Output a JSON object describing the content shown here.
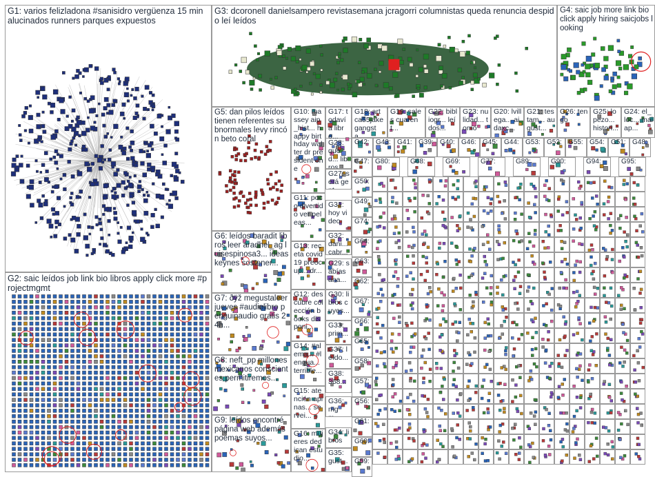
{
  "groups": [
    {
      "id": "G1",
      "text": "G1: varios felizladona #sanisidro vergüenza 15 min alucinados runners parques expuestos"
    },
    {
      "id": "G2",
      "text": "G2: saic leídos job link bio libros apply click more #projectmgmt"
    },
    {
      "id": "G3",
      "text": "G3: dcoronell danielsampero revistasemana jcragorri columnistas queda renuncia despido leí leídos"
    },
    {
      "id": "G4",
      "text": "G4: saic job more link bio click apply hiring saicjobs looking"
    },
    {
      "id": "G5",
      "text": "G5: dan pilos leídos tienen referentes subnormales levy rincón beto coral"
    },
    {
      "id": "G6",
      "text": "G6: leídos baradit libros leer aradhel_ag luisespinosa3... ideas keynes sostener..."
    },
    {
      "id": "G7",
      "text": "G7: ðÿž megustaleer jueves #audiolibro penguinaudio gratis 24h..."
    },
    {
      "id": "G8",
      "text": "G8: neft_pp millones mexicanos conscientes permitiremos..."
    },
    {
      "id": "G9",
      "text": "G9: leídos encontré página web además poemas suyos..."
    },
    {
      "id": "G10",
      "text": "G10: massey aip_hist... happy birthday walter dr president one"
    },
    {
      "id": "G11",
      "text": "G11: poco divertido ver peleas..."
    },
    {
      "id": "G12",
      "text": "G12: descubre colección books disponi..."
    },
    {
      "id": "G13",
      "text": "G13: receta covid19 preocup... dr..."
    },
    {
      "id": "G14",
      "text": "G14: #alema... #lengua... terrible..."
    },
    {
      "id": "G15",
      "text": "G15: atención apinas... servei..."
    },
    {
      "id": "G16",
      "text": "G16: mujeres dedican estudio..."
    },
    {
      "id": "G17",
      "text": "G17: todavía libro..."
    },
    {
      "id": "G18",
      "text": "G18: art ca55jake gangsta..."
    },
    {
      "id": "G19",
      "text": "G19: sales cuarent..."
    },
    {
      "id": "G20",
      "text": "G20: lvillega... aidaxc..."
    },
    {
      "id": "G21",
      "text": "G21: testam... august..."
    },
    {
      "id": "G22",
      "text": "G22: bibliogr... leídos..."
    },
    {
      "id": "G23",
      "text": "G23: nulidad... tomo"
    },
    {
      "id": "G24",
      "text": "G24: el_loc... maiap..."
    },
    {
      "id": "G25",
      "text": "G25: lopezo... histori..."
    },
    {
      "id": "G26",
      "text": "G26: tengo"
    },
    {
      "id": "G27",
      "text": "G27: será gent..."
    },
    {
      "id": "G28",
      "text": "G28: qued... libros"
    },
    {
      "id": "G29",
      "text": "G29: sabías ana..."
    },
    {
      "id": "G30",
      "text": "G30: libros cuyos..."
    },
    {
      "id": "G31",
      "text": "G31: hoy video"
    },
    {
      "id": "G32",
      "text": "G32: dani... cabr..."
    },
    {
      "id": "G33",
      "text": "G33: prim..."
    },
    {
      "id": "G34",
      "text": "G34: libros"
    },
    {
      "id": "G35",
      "text": "G35: gust..."
    },
    {
      "id": "G36",
      "text": "G36: mgm..."
    },
    {
      "id": "G37",
      "text": "G37: leído..."
    },
    {
      "id": "G38",
      "text": "G38: 368..."
    },
    {
      "id": "G39",
      "text": "G39: perez..."
    },
    {
      "id": "G40",
      "text": "G40: hans"
    },
    {
      "id": "G41",
      "text": "G41: demi..."
    },
    {
      "id": "G42",
      "text": "G42: nitoc..."
    },
    {
      "id": "G43",
      "text": "G43: tha ar..."
    },
    {
      "id": "G44",
      "text": "G44: facul..."
    },
    {
      "id": "G45",
      "text": "G45: se"
    },
    {
      "id": "G46",
      "text": "G46:"
    },
    {
      "id": "G47",
      "text": "G47: cua..."
    },
    {
      "id": "G48",
      "text": "G48:"
    },
    {
      "id": "G49",
      "text": "G49: inte..."
    },
    {
      "id": "G50",
      "text": "G50: nop"
    },
    {
      "id": "G51",
      "text": "G51:"
    },
    {
      "id": "G52",
      "text": "G52: ver"
    },
    {
      "id": "G53",
      "text": "G53:"
    },
    {
      "id": "G54",
      "text": "G54: sabi..."
    },
    {
      "id": "G55",
      "text": "G55:"
    },
    {
      "id": "G56",
      "text": "G56: em..."
    },
    {
      "id": "G57",
      "text": "G57: ..."
    },
    {
      "id": "G58",
      "text": "G58: chi..."
    },
    {
      "id": "G59",
      "text": "G59:"
    },
    {
      "id": "G60",
      "text": "G60:"
    },
    {
      "id": "G61",
      "text": "G61:"
    },
    {
      "id": "G62",
      "text": "G62:"
    },
    {
      "id": "G63",
      "text": "G63:"
    },
    {
      "id": "G64",
      "text": "G64:"
    },
    {
      "id": "G65",
      "text": "G65:"
    },
    {
      "id": "G66",
      "text": "G66: me..."
    },
    {
      "id": "G67",
      "text": "G67: pao..."
    },
    {
      "id": "G68",
      "text": "G68:"
    },
    {
      "id": "G69",
      "text": "G69:"
    },
    {
      "id": "G74",
      "text": "G74:"
    },
    {
      "id": "G77",
      "text": "G77:"
    },
    {
      "id": "G80",
      "text": "G80:"
    },
    {
      "id": "G89",
      "text": "G89:"
    },
    {
      "id": "G90",
      "text": "G90:"
    },
    {
      "id": "G94",
      "text": "G94:"
    },
    {
      "id": "G95",
      "text": "G95:"
    }
  ],
  "colors": {
    "border": "#9a9a9a",
    "label": "#1f2a3a",
    "edge": "#b4b4b4",
    "g1_node": "#1e2f7a",
    "g2_node": "#2a64b8",
    "g3_node": "#1e7a28",
    "g4_node": "#2a9a2a",
    "g5_node": "#a02020",
    "accent_red": "#e02020"
  }
}
